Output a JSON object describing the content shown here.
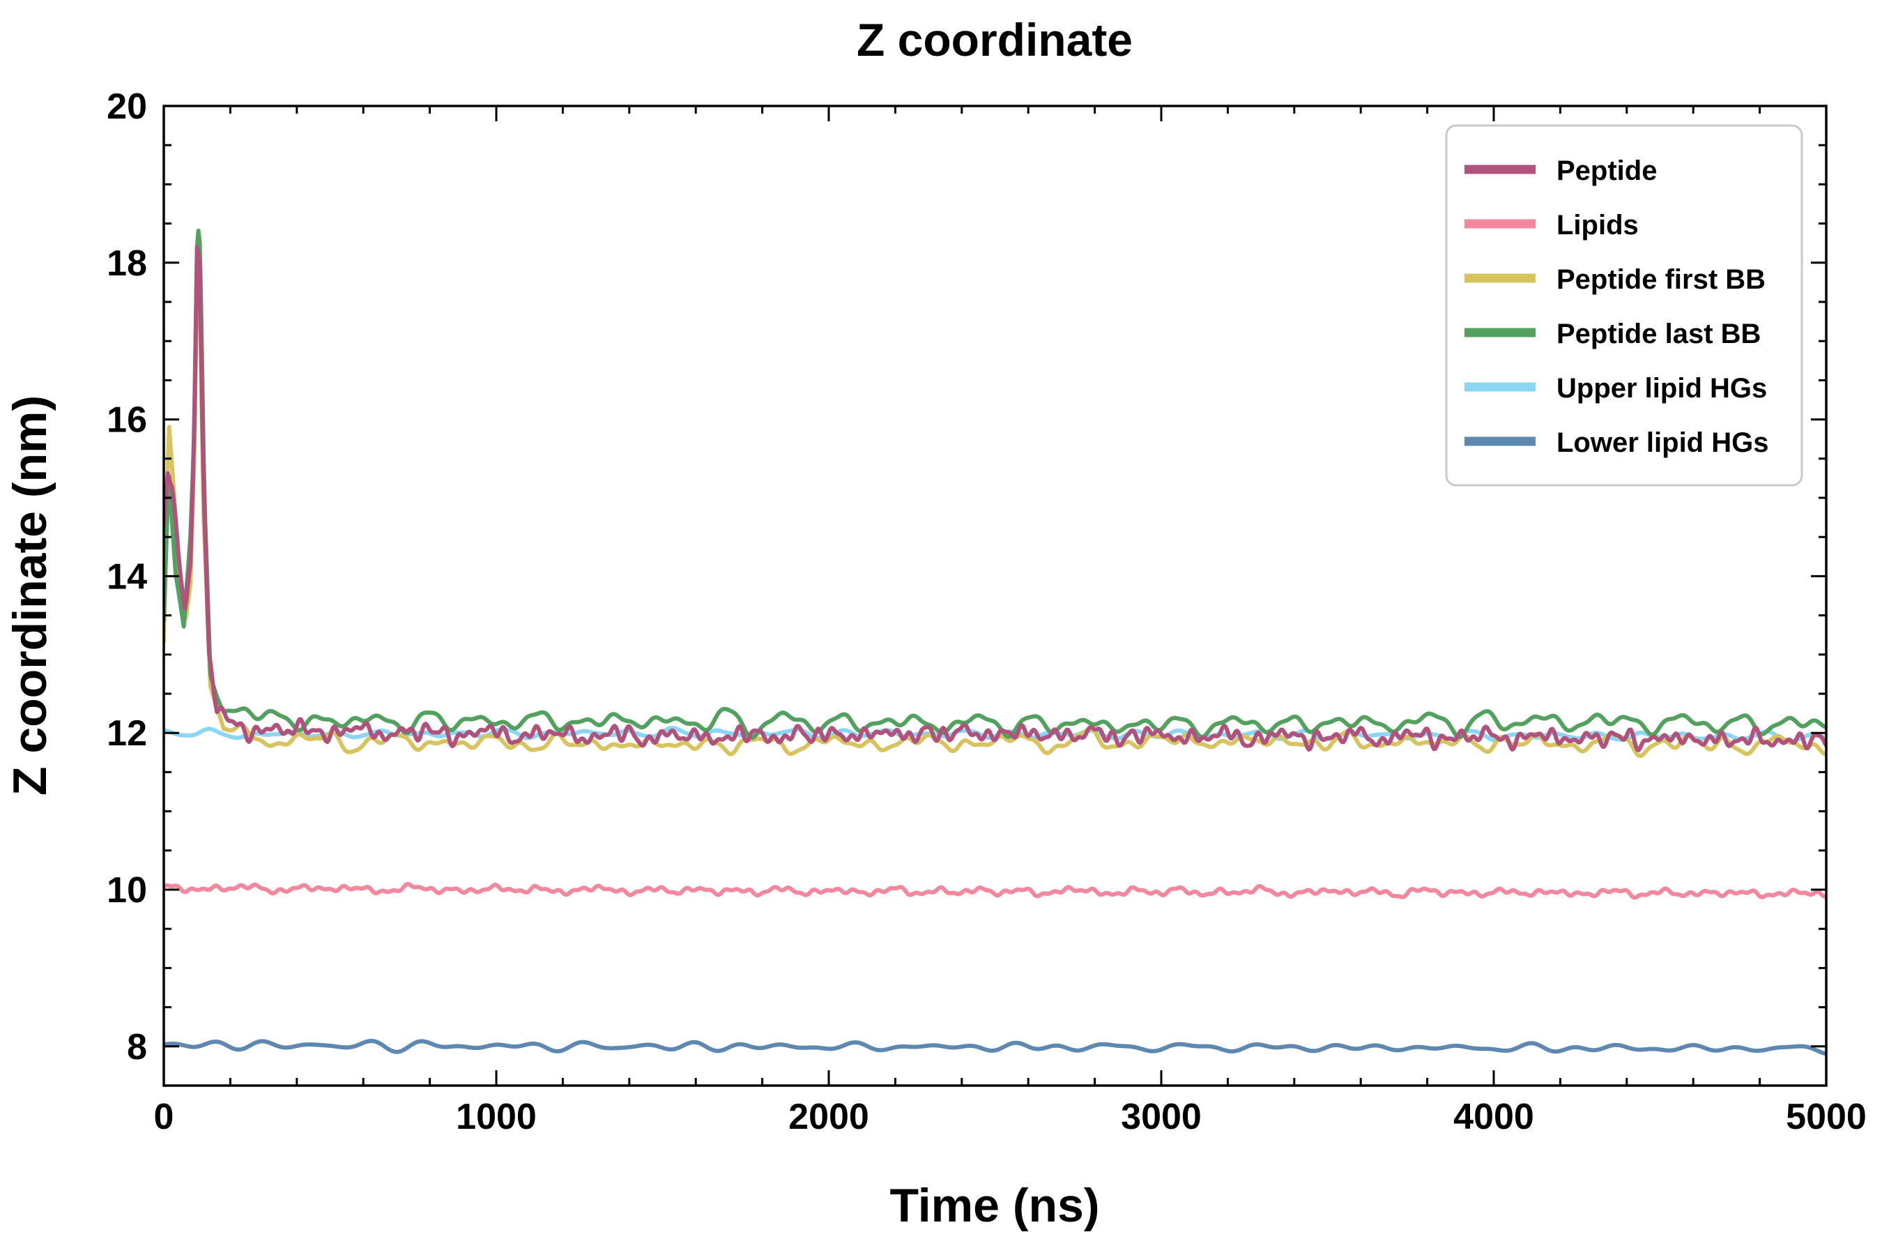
{
  "chart_data": {
    "type": "line",
    "title": "Z coordinate",
    "xlabel": "Time (ns)",
    "ylabel": "Z coordinate (nm)",
    "xlim": [
      0,
      5000
    ],
    "ylim": [
      7.5,
      20
    ],
    "xticks": [
      0,
      1000,
      2000,
      3000,
      4000,
      5000
    ],
    "yticks": [
      8,
      10,
      12,
      14,
      16,
      18,
      20
    ],
    "x_minor_step": 200,
    "y_minor_step": 0.5,
    "grid": false,
    "legend_position": "upper right",
    "axis_color": "#000000",
    "background_color": "#ffffff",
    "legend_border_color": "#c9c9c9",
    "series": [
      {
        "name": "Peptide",
        "color": "#b0527c",
        "linewidth": 6,
        "noise_amplitude": 0.11,
        "baseline": 12.0,
        "anchors": [
          [
            0,
            14.6
          ],
          [
            12,
            15.3
          ],
          [
            25,
            15.1
          ],
          [
            45,
            14.2
          ],
          [
            65,
            13.6
          ],
          [
            80,
            14.2
          ],
          [
            90,
            15.6
          ],
          [
            100,
            18.2
          ],
          [
            108,
            18.0
          ],
          [
            118,
            15.5
          ],
          [
            135,
            13.0
          ],
          [
            160,
            12.3
          ],
          [
            220,
            12.05
          ],
          [
            800,
            12.0
          ],
          [
            1600,
            11.95
          ],
          [
            2400,
            12.0
          ],
          [
            3200,
            11.95
          ],
          [
            4000,
            11.95
          ],
          [
            5000,
            11.9
          ]
        ]
      },
      {
        "name": "Lipids",
        "color": "#f2879d",
        "linewidth": 6,
        "noise_amplitude": 0.05,
        "baseline": 10.0,
        "anchors": [
          [
            0,
            10.02
          ],
          [
            1000,
            10.0
          ],
          [
            2000,
            9.98
          ],
          [
            3500,
            9.97
          ],
          [
            5000,
            9.95
          ]
        ]
      },
      {
        "name": "Peptide first BB",
        "color": "#d8c45e",
        "linewidth": 6,
        "noise_amplitude": 0.13,
        "baseline": 11.9,
        "anchors": [
          [
            0,
            13.2
          ],
          [
            15,
            15.9
          ],
          [
            30,
            15.0
          ],
          [
            50,
            13.8
          ],
          [
            65,
            13.4
          ],
          [
            80,
            14.0
          ],
          [
            92,
            15.8
          ],
          [
            100,
            18.05
          ],
          [
            108,
            17.8
          ],
          [
            120,
            14.8
          ],
          [
            140,
            12.6
          ],
          [
            180,
            12.0
          ],
          [
            400,
            11.9
          ],
          [
            1500,
            11.85
          ],
          [
            3000,
            11.9
          ],
          [
            5000,
            11.85
          ]
        ]
      },
      {
        "name": "Peptide last BB",
        "color": "#53a15f",
        "linewidth": 6,
        "noise_amplitude": 0.14,
        "baseline": 12.15,
        "anchors": [
          [
            0,
            13.4
          ],
          [
            15,
            15.3
          ],
          [
            35,
            14.0
          ],
          [
            60,
            13.3
          ],
          [
            80,
            14.5
          ],
          [
            93,
            16.0
          ],
          [
            101,
            18.5
          ],
          [
            109,
            18.2
          ],
          [
            122,
            15.0
          ],
          [
            140,
            12.8
          ],
          [
            180,
            12.3
          ],
          [
            400,
            12.15
          ],
          [
            1500,
            12.15
          ],
          [
            3000,
            12.1
          ],
          [
            4200,
            12.15
          ],
          [
            5000,
            12.1
          ]
        ]
      },
      {
        "name": "Upper lipid HGs",
        "color": "#8bd6f2",
        "linewidth": 6,
        "noise_amplitude": 0.05,
        "baseline": 12.0,
        "anchors": [
          [
            0,
            12.0
          ],
          [
            300,
            11.98
          ],
          [
            1500,
            12.0
          ],
          [
            3000,
            11.98
          ],
          [
            5000,
            11.95
          ]
        ]
      },
      {
        "name": "Lower lipid HGs",
        "color": "#5c88b1",
        "linewidth": 6,
        "noise_amplitude": 0.05,
        "baseline": 8.0,
        "anchors": [
          [
            0,
            8.02
          ],
          [
            1200,
            8.0
          ],
          [
            3000,
            7.99
          ],
          [
            5000,
            7.97
          ]
        ]
      }
    ]
  }
}
